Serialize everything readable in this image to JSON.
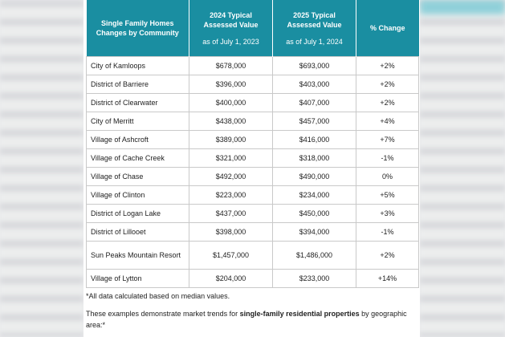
{
  "table": {
    "headers": [
      {
        "main": "Single Family Homes Changes by Community",
        "sub": ""
      },
      {
        "main": "2024 Typical Assessed Value",
        "sub": "as of July 1, 2023"
      },
      {
        "main": "2025 Typical Assessed Value",
        "sub": "as of July 1, 2024"
      },
      {
        "main": "% Change",
        "sub": ""
      }
    ],
    "rows": [
      {
        "community": "City of Kamloops",
        "v2024": "$678,000",
        "v2025": "$693,000",
        "change": "+2%"
      },
      {
        "community": "District of Barriere",
        "v2024": "$396,000",
        "v2025": "$403,000",
        "change": "+2%"
      },
      {
        "community": "District of Clearwater",
        "v2024": "$400,000",
        "v2025": "$407,000",
        "change": "+2%"
      },
      {
        "community": "City of Merritt",
        "v2024": "$438,000",
        "v2025": "$457,000",
        "change": "+4%"
      },
      {
        "community": "Village of Ashcroft",
        "v2024": "$389,000",
        "v2025": "$416,000",
        "change": "+7%"
      },
      {
        "community": "Village of Cache Creek",
        "v2024": "$321,000",
        "v2025": "$318,000",
        "change": "-1%"
      },
      {
        "community": "Village of Chase",
        "v2024": "$492,000",
        "v2025": "$490,000",
        "change": "0%"
      },
      {
        "community": "Village of Clinton",
        "v2024": "$223,000",
        "v2025": "$234,000",
        "change": "+5%"
      },
      {
        "community": "District of Logan Lake",
        "v2024": "$437,000",
        "v2025": "$450,000",
        "change": "+3%"
      },
      {
        "community": "District of Lillooet",
        "v2024": "$398,000",
        "v2025": "$394,000",
        "change": "-1%"
      },
      {
        "community": "Sun Peaks Mountain Resort",
        "v2024": "$1,457,000",
        "v2025": "$1,486,000",
        "change": "+2%"
      },
      {
        "community": "Village of Lytton",
        "v2024": "$204,000",
        "v2025": "$233,000",
        "change": "+14%"
      }
    ]
  },
  "notes": {
    "footnote": "*All data calculated based on median values.",
    "para_before": "These examples demonstrate market trends for ",
    "para_bold": "single-family residential properties",
    "para_after": " by geographic area:*"
  },
  "colors": {
    "header_bg": "#1a8ea1",
    "header_text": "#ffffff",
    "border": "#c9c9c9"
  }
}
